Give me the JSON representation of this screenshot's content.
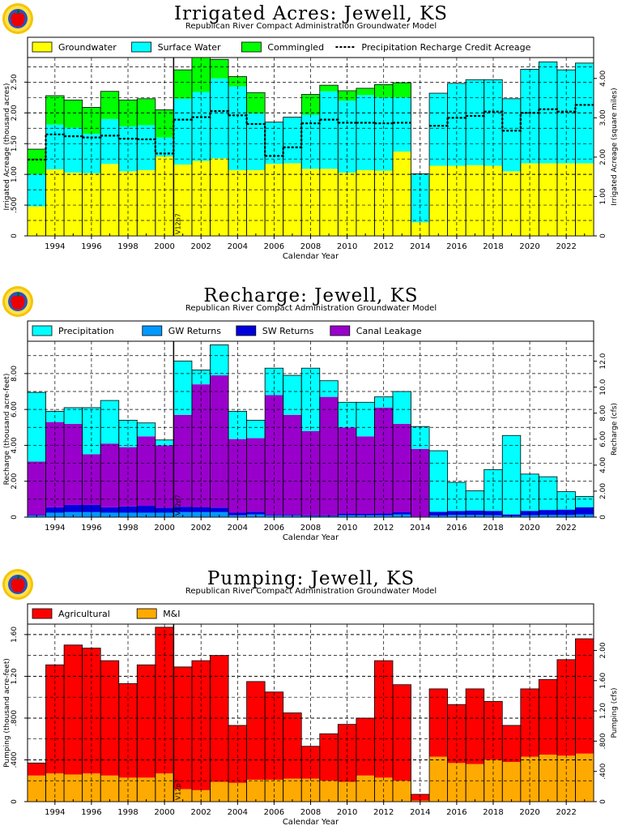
{
  "chart_data": [
    {
      "type": "bar",
      "title": "Irrigated Acres: Jewell, KS",
      "subtitle": "Republican River Compact Administration Groundwater Model",
      "xlabel": "Calendar Year",
      "ylabel": "Irrigated Acreage (thousand acres)",
      "ylabel_right": "Irrigated Acreage (square miles)",
      "marker": "V12p7",
      "marker_year": 2000.5,
      "x_range": [
        1992.5,
        2023.5
      ],
      "ylim": [
        0,
        2.9
      ],
      "ylim_right": [
        0,
        4.531
      ],
      "yticks": [
        0.5,
        1.0,
        1.5,
        2.0,
        2.5
      ],
      "ytick_labels": [
        ".500",
        "1.00",
        "1.50",
        "2.00",
        "2.50"
      ],
      "yticks_right": [
        1.0,
        2.0,
        3.0,
        4.0
      ],
      "ytick_labels_right": [
        "1.00",
        "2.00",
        "3.00",
        "4.00"
      ],
      "grid_y": [
        0.25,
        0.5,
        0.75,
        1.0,
        1.25,
        1.5,
        1.75,
        2.0,
        2.25,
        2.5,
        2.75
      ],
      "grid_y_major": [
        1.0,
        2.0
      ],
      "xticks": [
        1994,
        1996,
        1998,
        2000,
        2002,
        2004,
        2006,
        2008,
        2010,
        2012,
        2014,
        2016,
        2018,
        2020,
        2022
      ],
      "legend": "top",
      "categories": [
        1993,
        1994,
        1995,
        1996,
        1997,
        1998,
        1999,
        2000,
        2001,
        2002,
        2003,
        2004,
        2005,
        2006,
        2007,
        2008,
        2009,
        2010,
        2011,
        2012,
        2013,
        2014,
        2015,
        2016,
        2017,
        2018,
        2019,
        2020,
        2021,
        2022,
        2023
      ],
      "series": [
        {
          "name": "Groundwater",
          "color": "#ffff00",
          "values": [
            0.48,
            1.08,
            1.03,
            1.02,
            1.17,
            1.05,
            1.07,
            1.29,
            1.16,
            1.22,
            1.26,
            1.07,
            1.07,
            1.17,
            1.18,
            1.09,
            1.09,
            1.03,
            1.07,
            1.06,
            1.37,
            0.22,
            1.14,
            1.14,
            1.15,
            1.14,
            1.05,
            1.18,
            1.18,
            1.18,
            1.18
          ]
        },
        {
          "name": "Surface Water",
          "color": "#00ffff",
          "values": [
            0.52,
            0.73,
            0.73,
            0.64,
            0.73,
            0.73,
            0.73,
            0.31,
            1.07,
            1.12,
            1.3,
            1.36,
            0.92,
            0.68,
            0.75,
            0.88,
            1.26,
            1.17,
            1.22,
            1.19,
            0.88,
            0.79,
            1.18,
            1.34,
            1.39,
            1.4,
            1.18,
            1.53,
            1.65,
            1.52,
            1.63
          ]
        },
        {
          "name": "Commingled",
          "color": "#00ff00",
          "values": [
            0.41,
            0.47,
            0.45,
            0.43,
            0.45,
            0.43,
            0.43,
            0.45,
            0.47,
            0.56,
            0.31,
            0.16,
            0.34,
            0,
            0,
            0.33,
            0.1,
            0.16,
            0.11,
            0.21,
            0.24,
            0,
            0,
            0,
            0,
            0,
            0,
            0,
            0,
            0,
            0
          ]
        }
      ],
      "line": {
        "name": "Precipitation Recharge Credit Acreage",
        "values": [
          1.24,
          1.65,
          1.62,
          1.6,
          1.63,
          1.58,
          1.57,
          1.34,
          1.89,
          1.93,
          2.03,
          1.96,
          1.82,
          1.3,
          1.44,
          1.83,
          1.89,
          1.84,
          1.84,
          1.83,
          1.84,
          0,
          1.79,
          1.92,
          1.95,
          2.02,
          1.71,
          2.0,
          2.06,
          2.02,
          2.13
        ]
      }
    },
    {
      "type": "bar",
      "title": "Recharge: Jewell, KS",
      "subtitle": "Republican River Compact Administration Groundwater Model",
      "xlabel": "Calendar Year",
      "ylabel": "Recharge (thousand acre-feet)",
      "ylabel_right": "Recharge (cfs)",
      "marker": "V12p7",
      "marker_year": 2000.5,
      "x_range": [
        1992.5,
        2023.5
      ],
      "ylim": [
        0,
        9.8
      ],
      "ylim_right": [
        0,
        13.535
      ],
      "yticks": [
        2.0,
        4.0,
        6.0,
        8.0
      ],
      "ytick_labels": [
        "2.00",
        "4.00",
        "6.00",
        "8.00"
      ],
      "yticks_right": [
        2.0,
        4.0,
        6.0,
        8.0,
        10.0,
        12.0
      ],
      "ytick_labels_right": [
        "2.00",
        "4.00",
        "6.00",
        "8.00",
        "10.0",
        "12.0"
      ],
      "grid_y": [
        1,
        2,
        3,
        4,
        5,
        6,
        7,
        8,
        9
      ],
      "grid_y_major": [],
      "xticks": [
        1994,
        1996,
        1998,
        2000,
        2002,
        2004,
        2006,
        2008,
        2010,
        2012,
        2014,
        2016,
        2018,
        2020,
        2022
      ],
      "legend": "top",
      "categories": [
        1993,
        1994,
        1995,
        1996,
        1997,
        1998,
        1999,
        2000,
        2001,
        2002,
        2003,
        2004,
        2005,
        2006,
        2007,
        2008,
        2009,
        2010,
        2011,
        2012,
        2013,
        2014,
        2015,
        2016,
        2017,
        2018,
        2019,
        2020,
        2021,
        2022,
        2023
      ],
      "series": [
        {
          "name": "GW Returns",
          "color": "#0099ff",
          "values": [
            0.08,
            0.25,
            0.28,
            0.28,
            0.25,
            0.25,
            0.25,
            0.25,
            0.28,
            0.28,
            0.28,
            0.1,
            0.15,
            0.08,
            0.08,
            0.05,
            0.05,
            0.1,
            0.1,
            0.1,
            0.15,
            0.02,
            0.08,
            0.12,
            0.12,
            0.1,
            0.05,
            0.1,
            0.12,
            0.12,
            0.15
          ]
        },
        {
          "name": "SW Returns",
          "color": "#0000dd",
          "values": [
            0.05,
            0.3,
            0.4,
            0.4,
            0.3,
            0.35,
            0.38,
            0.28,
            0.3,
            0.28,
            0.25,
            0.15,
            0.15,
            0.05,
            0.05,
            0.05,
            0.05,
            0.08,
            0.08,
            0.1,
            0.12,
            0.01,
            0.22,
            0.22,
            0.25,
            0.25,
            0.1,
            0.25,
            0.28,
            0.3,
            0.4
          ]
        },
        {
          "name": "Canal Leakage",
          "color": "#9900cc",
          "values": [
            2.97,
            4.75,
            4.52,
            2.82,
            3.55,
            3.3,
            3.87,
            3.47,
            5.12,
            6.84,
            7.37,
            4.1,
            4.1,
            6.67,
            5.57,
            4.7,
            6.6,
            4.82,
            4.32,
            5.9,
            4.93,
            3.77,
            0,
            0,
            0,
            0,
            0,
            0,
            0,
            0,
            0
          ]
        },
        {
          "name": "Precipitation",
          "color": "#00ffff",
          "values": [
            3.85,
            0.6,
            0.9,
            2.6,
            2.4,
            1.5,
            0.75,
            0.3,
            3.0,
            0.8,
            1.7,
            1.55,
            1.0,
            1.5,
            2.2,
            3.5,
            0.9,
            1.4,
            1.9,
            0.6,
            1.8,
            1.25,
            3.4,
            1.6,
            1.1,
            2.3,
            4.4,
            2.05,
            1.85,
            1.0,
            0.6
          ]
        }
      ]
    },
    {
      "type": "bar",
      "title": "Pumping: Jewell, KS",
      "subtitle": "Republican River Compact Administration Groundwater Model",
      "xlabel": "Calendar Year",
      "ylabel": "Pumping (thousand acre-feet)",
      "ylabel_right": "Pumping (cfs)",
      "marker": "V12p7",
      "marker_year": 2000.5,
      "x_range": [
        1992.5,
        2023.5
      ],
      "ylim": [
        0,
        1.7
      ],
      "ylim_right": [
        0,
        2.348
      ],
      "yticks": [
        0.4,
        0.8,
        1.2,
        1.6
      ],
      "ytick_labels": [
        ".400",
        ".800",
        "1.20",
        "1.60"
      ],
      "yticks_right": [
        0.4,
        0.8,
        1.2,
        1.6,
        2.0
      ],
      "ytick_labels_right": [
        ".400",
        ".800",
        "1.20",
        "1.60",
        "2.00"
      ],
      "grid_y": [
        0.2,
        0.4,
        0.6,
        0.8,
        1.0,
        1.2,
        1.4,
        1.6
      ],
      "grid_y_major": [
        0.4,
        0.8,
        1.2,
        1.6
      ],
      "xticks": [
        1994,
        1996,
        1998,
        2000,
        2002,
        2004,
        2006,
        2008,
        2010,
        2012,
        2014,
        2016,
        2018,
        2020,
        2022
      ],
      "legend": "top",
      "categories": [
        1993,
        1994,
        1995,
        1996,
        1997,
        1998,
        1999,
        2000,
        2001,
        2002,
        2003,
        2004,
        2005,
        2006,
        2007,
        2008,
        2009,
        2010,
        2011,
        2012,
        2013,
        2014,
        2015,
        2016,
        2017,
        2018,
        2019,
        2020,
        2021,
        2022,
        2023
      ],
      "series": [
        {
          "name": "M&I",
          "color": "#ffaa00",
          "values": [
            0.25,
            0.27,
            0.26,
            0.27,
            0.25,
            0.23,
            0.23,
            0.27,
            0.12,
            0.11,
            0.19,
            0.18,
            0.21,
            0.21,
            0.22,
            0.22,
            0.2,
            0.19,
            0.25,
            0.23,
            0.2,
            0.01,
            0.43,
            0.37,
            0.36,
            0.4,
            0.38,
            0.43,
            0.45,
            0.44,
            0.46
          ]
        },
        {
          "name": "Agricultural",
          "color": "#ff0000",
          "values": [
            0.12,
            1.04,
            1.24,
            1.2,
            1.1,
            0.9,
            1.08,
            1.4,
            1.17,
            1.24,
            1.21,
            0.55,
            0.94,
            0.84,
            0.63,
            0.31,
            0.45,
            0.55,
            0.55,
            1.12,
            0.92,
            0.06,
            0.65,
            0.56,
            0.72,
            0.56,
            0.35,
            0.65,
            0.72,
            0.92,
            1.1
          ]
        }
      ]
    }
  ]
}
